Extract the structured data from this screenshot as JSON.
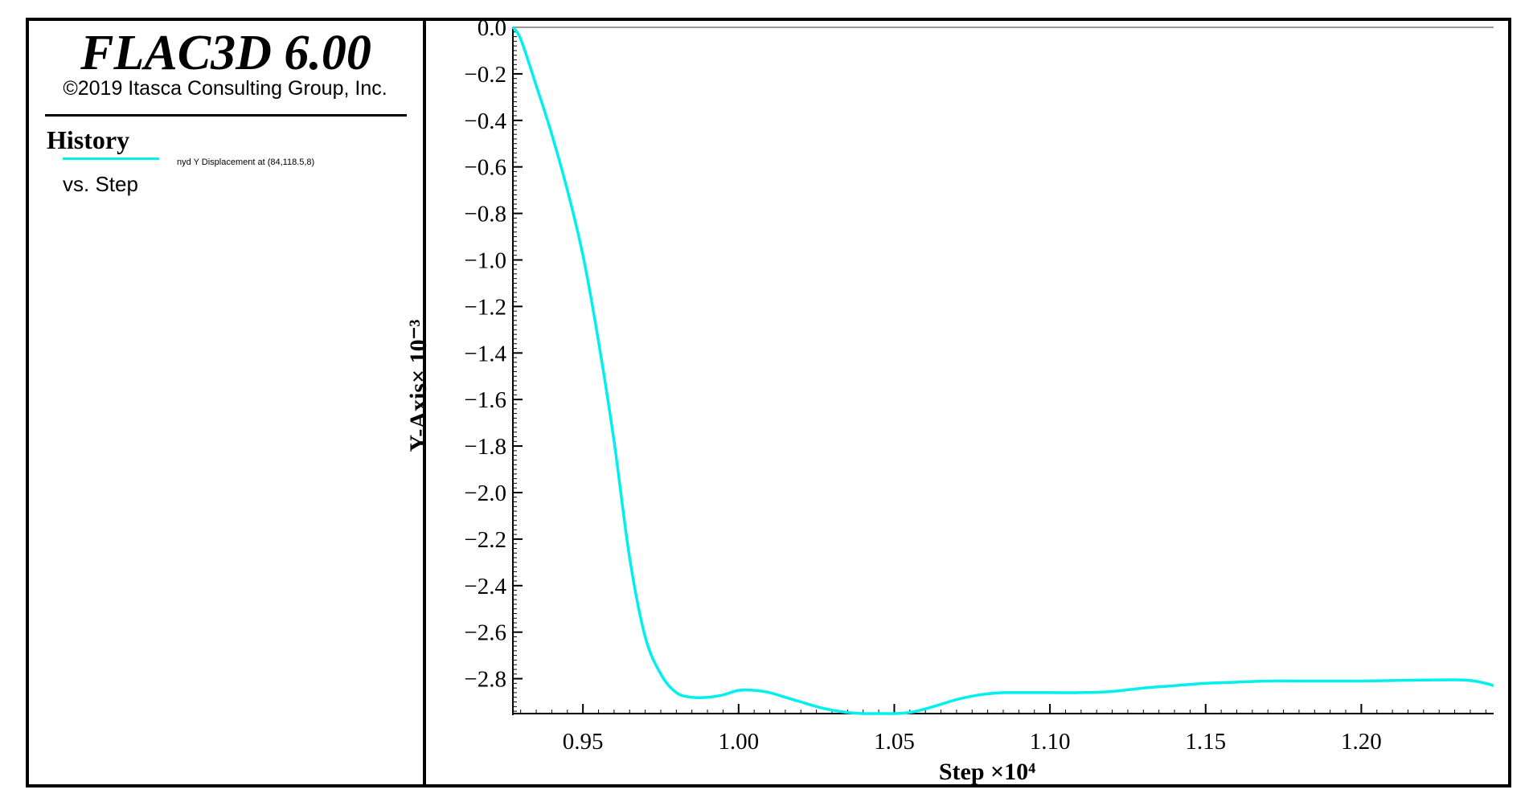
{
  "legend": {
    "app_title": "FLAC3D 6.00",
    "copyright": "©2019 Itasca Consulting Group, Inc.",
    "history_label": "History",
    "series_caption": "nyd Y Displacement at (84,118.5,8)",
    "vs_label": "vs. Step"
  },
  "colors": {
    "series": "#00f0f0",
    "axis": "#000000",
    "zero_line": "#9a9a9a",
    "border": "#000000"
  },
  "chart_data": {
    "type": "line",
    "xlabel": "Step ×10⁴",
    "ylabel": "Y-Axis× 10⁻³",
    "xlim": [
      0.9275,
      1.2425
    ],
    "ylim": [
      -2.95,
      0.0
    ],
    "x_ticks": [
      0.95,
      1.0,
      1.05,
      1.1,
      1.15,
      1.2
    ],
    "x_tick_labels": [
      "0.95",
      "1.00",
      "1.05",
      "1.10",
      "1.15",
      "1.20"
    ],
    "y_ticks": [
      0.0,
      -0.2,
      -0.4,
      -0.6,
      -0.8,
      -1.0,
      -1.2,
      -1.4,
      -1.6,
      -1.8,
      -2.0,
      -2.2,
      -2.4,
      -2.6,
      -2.8
    ],
    "y_tick_labels": [
      "0.0",
      "−0.2",
      "−0.4",
      "−0.6",
      "−0.8",
      "−1.0",
      "−1.2",
      "−1.4",
      "−1.6",
      "−1.8",
      "−2.0",
      "−2.2",
      "−2.4",
      "−2.6",
      "−2.8"
    ],
    "grid": false,
    "series": [
      {
        "name": "nyd Y Displacement at (84,118.5,8)",
        "x": [
          0.9275,
          0.93,
          0.935,
          0.94,
          0.945,
          0.95,
          0.955,
          0.96,
          0.965,
          0.97,
          0.975,
          0.98,
          0.985,
          0.99,
          0.995,
          1.0,
          1.005,
          1.01,
          1.015,
          1.02,
          1.025,
          1.03,
          1.035,
          1.04,
          1.045,
          1.05,
          1.055,
          1.06,
          1.065,
          1.07,
          1.075,
          1.08,
          1.085,
          1.09,
          1.1,
          1.11,
          1.12,
          1.13,
          1.14,
          1.15,
          1.16,
          1.17,
          1.18,
          1.19,
          1.2,
          1.21,
          1.22,
          1.23,
          1.235,
          1.24,
          1.2425
        ],
        "y": [
          0.0,
          -0.05,
          -0.25,
          -0.46,
          -0.7,
          -0.98,
          -1.35,
          -1.78,
          -2.28,
          -2.62,
          -2.78,
          -2.86,
          -2.88,
          -2.88,
          -2.87,
          -2.85,
          -2.85,
          -2.86,
          -2.88,
          -2.9,
          -2.92,
          -2.935,
          -2.945,
          -2.95,
          -2.95,
          -2.95,
          -2.945,
          -2.93,
          -2.91,
          -2.89,
          -2.875,
          -2.865,
          -2.86,
          -2.86,
          -2.86,
          -2.86,
          -2.855,
          -2.84,
          -2.83,
          -2.82,
          -2.815,
          -2.81,
          -2.81,
          -2.81,
          -2.81,
          -2.808,
          -2.806,
          -2.805,
          -2.808,
          -2.82,
          -2.83
        ]
      }
    ]
  }
}
